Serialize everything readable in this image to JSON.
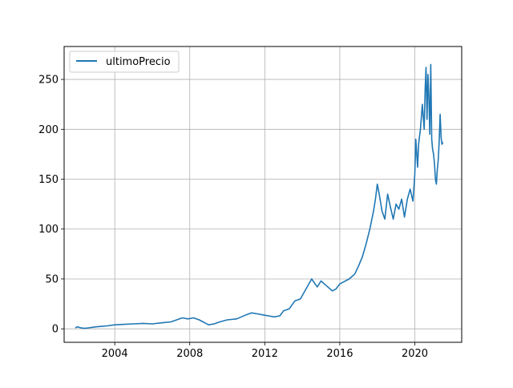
{
  "chart_data": {
    "type": "line",
    "title": "",
    "xlabel": "",
    "ylabel": "",
    "grid": true,
    "legend_placement": "top-left",
    "xlim": [
      2001.3,
      2022.5
    ],
    "ylim": [
      -13.5,
      283
    ],
    "x_ticks": [
      2004,
      2008,
      2012,
      2016,
      2020
    ],
    "x_tick_labels": [
      "2004",
      "2008",
      "2012",
      "2016",
      "2020"
    ],
    "y_ticks": [
      0,
      50,
      100,
      150,
      200,
      250
    ],
    "y_tick_labels": [
      "0",
      "50",
      "100",
      "150",
      "200",
      "250"
    ],
    "series": [
      {
        "name": "ultimoPrecio",
        "color": "#1f77b4",
        "x": [
          2001.9,
          2002.0,
          2002.2,
          2002.4,
          2002.6,
          2002.8,
          2003.0,
          2003.3,
          2003.6,
          2004.0,
          2004.5,
          2005.0,
          2005.5,
          2006.0,
          2006.5,
          2007.0,
          2007.3,
          2007.6,
          2007.9,
          2008.2,
          2008.5,
          2008.8,
          2009.0,
          2009.3,
          2009.6,
          2010.0,
          2010.5,
          2011.0,
          2011.3,
          2011.6,
          2011.9,
          2012.2,
          2012.5,
          2012.8,
          2013.0,
          2013.3,
          2013.6,
          2013.9,
          2014.2,
          2014.5,
          2014.8,
          2015.0,
          2015.3,
          2015.6,
          2015.8,
          2016.0,
          2016.2,
          2016.5,
          2016.8,
          2017.0,
          2017.2,
          2017.4,
          2017.6,
          2017.8,
          2017.9,
          2018.0,
          2018.1,
          2018.25,
          2018.4,
          2018.55,
          2018.7,
          2018.85,
          2019.0,
          2019.15,
          2019.3,
          2019.45,
          2019.6,
          2019.75,
          2019.9,
          2020.0,
          2020.05,
          2020.15,
          2020.2,
          2020.3,
          2020.4,
          2020.5,
          2020.55,
          2020.6,
          2020.65,
          2020.7,
          2020.75,
          2020.8,
          2020.85,
          2020.9,
          2020.95,
          2021.0,
          2021.05,
          2021.1,
          2021.15,
          2021.2,
          2021.25,
          2021.3,
          2021.35,
          2021.4,
          2021.45,
          2021.5
        ],
        "y": [
          1,
          2,
          1,
          0.5,
          1,
          1.5,
          2,
          2.5,
          3,
          4,
          4.5,
          5,
          5.5,
          5,
          6,
          7,
          9,
          11,
          10,
          11,
          9,
          6,
          4,
          5,
          7,
          9,
          10,
          14,
          16,
          15,
          14,
          13,
          12,
          13,
          18,
          20,
          28,
          30,
          40,
          50,
          42,
          48,
          43,
          38,
          40,
          45,
          47,
          50,
          55,
          63,
          72,
          85,
          100,
          118,
          130,
          145,
          135,
          118,
          110,
          135,
          122,
          110,
          125,
          120,
          130,
          112,
          130,
          140,
          128,
          155,
          190,
          162,
          185,
          200,
          225,
          200,
          240,
          262,
          210,
          255,
          230,
          195,
          265,
          190,
          180,
          175,
          165,
          150,
          145,
          160,
          170,
          188,
          215,
          192,
          185,
          187
        ]
      }
    ]
  }
}
